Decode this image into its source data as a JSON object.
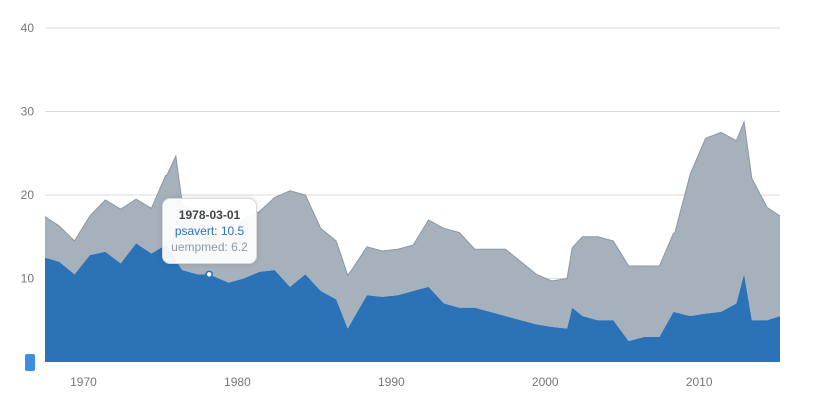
{
  "chart_data": {
    "type": "area",
    "stacked": true,
    "x_range": [
      "1967-07-01",
      "2015-04-01"
    ],
    "y_range": [
      0,
      40
    ],
    "y_ticks": [
      {
        "value": 10,
        "label": "10"
      },
      {
        "value": 20,
        "label": "20"
      },
      {
        "value": 30,
        "label": "30"
      },
      {
        "value": 40,
        "label": "40"
      }
    ],
    "x_ticks": [
      {
        "year": 1970,
        "label": "1970"
      },
      {
        "year": 1980,
        "label": "1980"
      },
      {
        "year": 1990,
        "label": "1990"
      },
      {
        "year": 2000,
        "label": "2000"
      },
      {
        "year": 2010,
        "label": "2010"
      }
    ],
    "grid": "horizontal",
    "colors": {
      "psavert": "#2b73b6",
      "uempmed": "#a7b1bb",
      "uempmed_line": "#8898a5",
      "grid": "#dddddd"
    },
    "series": [
      {
        "name": "psavert",
        "x": [
          "1967-07-01",
          "1968-06-01",
          "1969-06-01",
          "1970-06-01",
          "1971-06-01",
          "1972-06-01",
          "1973-06-01",
          "1974-06-01",
          "1975-05-01",
          "1976-06-01",
          "1977-06-01",
          "1978-03-01",
          "1979-06-01",
          "1980-06-01",
          "1981-06-01",
          "1982-06-01",
          "1983-06-01",
          "1984-06-01",
          "1985-06-01",
          "1986-06-01",
          "1987-03-01",
          "1988-06-01",
          "1989-06-01",
          "1990-06-01",
          "1991-06-01",
          "1992-06-01",
          "1993-06-01",
          "1994-06-01",
          "1995-06-01",
          "1996-06-01",
          "1997-06-01",
          "1998-06-01",
          "1999-06-01",
          "2000-06-01",
          "2001-06-01",
          "2001-10-01",
          "2002-06-01",
          "2003-06-01",
          "2004-06-01",
          "2005-06-01",
          "2006-06-01",
          "2007-06-01",
          "2008-05-01",
          "2009-06-01",
          "2010-06-01",
          "2011-06-01",
          "2012-06-01",
          "2012-12-01",
          "2013-06-01",
          "2014-06-01",
          "2015-04-01"
        ],
        "values": [
          12.5,
          12.0,
          10.5,
          12.8,
          13.2,
          11.8,
          14.2,
          13.0,
          14.0,
          11.0,
          10.5,
          10.5,
          9.5,
          10.0,
          10.8,
          11.0,
          9.0,
          10.5,
          8.5,
          7.5,
          4.0,
          8.0,
          7.8,
          8.0,
          8.5,
          9.0,
          7.0,
          6.5,
          6.5,
          6.0,
          5.5,
          5.0,
          4.5,
          4.2,
          4.0,
          6.5,
          5.5,
          5.0,
          5.0,
          2.5,
          3.0,
          3.0,
          6.0,
          5.5,
          5.8,
          6.0,
          7.0,
          10.5,
          5.0,
          5.0,
          5.5
        ]
      },
      {
        "name": "uempmed",
        "x": [
          "1967-07-01",
          "1968-06-01",
          "1969-06-01",
          "1970-06-01",
          "1971-06-01",
          "1972-06-01",
          "1973-06-01",
          "1974-06-01",
          "1975-06-01",
          "1976-01-01",
          "1976-06-01",
          "1977-06-01",
          "1978-03-01",
          "1979-06-01",
          "1980-06-01",
          "1981-06-01",
          "1982-06-01",
          "1983-06-01",
          "1984-06-01",
          "1985-06-01",
          "1986-06-01",
          "1987-06-01",
          "1988-06-01",
          "1989-06-01",
          "1990-06-01",
          "1991-06-01",
          "1992-06-01",
          "1993-06-01",
          "1994-06-01",
          "1995-06-01",
          "1996-06-01",
          "1997-06-01",
          "1998-06-01",
          "1999-06-01",
          "2000-06-01",
          "2001-06-01",
          "2002-06-01",
          "2003-06-01",
          "2004-06-01",
          "2005-06-01",
          "2006-06-01",
          "2007-06-01",
          "2008-06-01",
          "2009-06-01",
          "2010-06-01",
          "2011-06-01",
          "2012-06-01",
          "2013-06-01",
          "2014-06-01",
          "2015-04-01"
        ],
        "values": [
          4.9,
          4.3,
          4.0,
          4.7,
          6.2,
          6.5,
          5.3,
          5.4,
          8.6,
          12.5,
          8.0,
          7.0,
          6.2,
          5.2,
          7.2,
          7.2,
          8.7,
          11.5,
          9.5,
          7.5,
          7.0,
          6.2,
          5.8,
          5.5,
          5.5,
          5.5,
          8.0,
          9.0,
          9.0,
          7.0,
          7.5,
          8.0,
          7.0,
          6.0,
          5.5,
          6.0,
          9.5,
          10.0,
          9.5,
          9.0,
          8.5,
          8.5,
          9.5,
          17.0,
          21.0,
          21.5,
          19.5,
          17.0,
          13.5,
          12.0
        ]
      }
    ],
    "tooltip": {
      "date": "1978-03-01",
      "psavert": "psavert: 10.5",
      "uempmed": "uempmed: 6.2"
    }
  }
}
